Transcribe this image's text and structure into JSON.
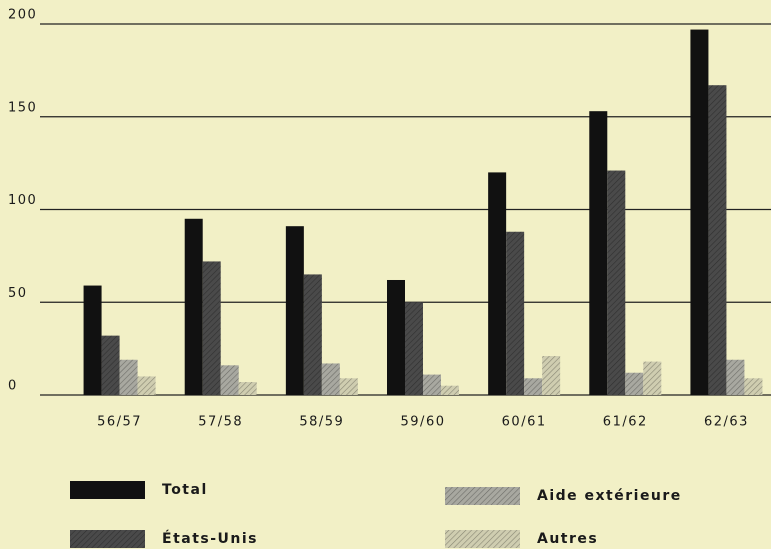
{
  "chart_data": {
    "type": "bar",
    "categories": [
      "56/57",
      "57/58",
      "58/59",
      "59/60",
      "60/61",
      "61/62",
      "62/63"
    ],
    "series": [
      {
        "name": "Total",
        "color": "#111111",
        "values": [
          59,
          95,
          91,
          62,
          120,
          153,
          197
        ]
      },
      {
        "name": "États-Unis",
        "color": "#4a4a4a",
        "values": [
          32,
          72,
          65,
          50,
          88,
          121,
          167
        ]
      },
      {
        "name": "Aide extérieure",
        "color": "#a8a8a0",
        "values": [
          19,
          16,
          17,
          11,
          9,
          12,
          19
        ]
      },
      {
        "name": "Autres",
        "color": "#cfcdb0",
        "values": [
          10,
          7,
          9,
          5,
          21,
          18,
          9
        ]
      }
    ],
    "ylim": [
      0,
      200
    ],
    "yticks": [
      0,
      50,
      100,
      150,
      200
    ],
    "grid": true
  }
}
